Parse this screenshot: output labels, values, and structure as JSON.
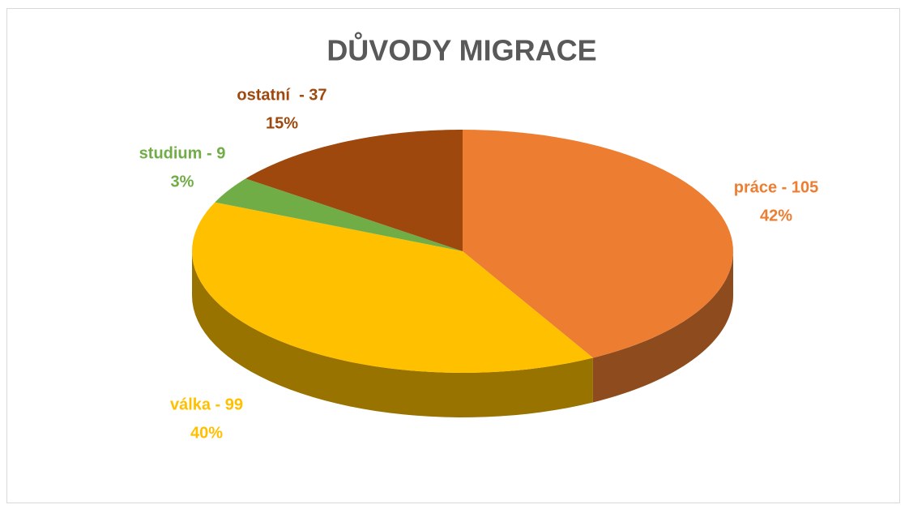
{
  "chart_data": {
    "type": "pie3d",
    "title": "DŮVODY MIGRACE",
    "values": [
      105,
      99,
      9,
      37
    ],
    "value_labels": [
      "práce - 105",
      "válka - 99",
      "studium - 9",
      "ostatní  - 37"
    ],
    "percent_labels": [
      "42%",
      "40%",
      "3%",
      "15%"
    ],
    "colors": [
      "#ED7D31",
      "#FFC000",
      "#70AD47",
      "#9E480E"
    ]
  }
}
